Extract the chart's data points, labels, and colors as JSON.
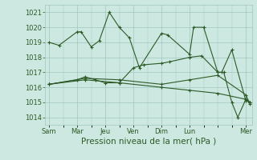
{
  "bg_color": "#cce8e0",
  "grid_color": "#a0c8c0",
  "line_color": "#2d5a27",
  "xlabel": "Pression niveau de la mer( hPa )",
  "xlabel_fontsize": 7.5,
  "yticks": [
    1014,
    1015,
    1016,
    1017,
    1018,
    1019,
    1020,
    1021
  ],
  "xtick_labels": [
    "Sam",
    "Mar",
    "Jeu",
    "Ven",
    "Dim",
    "Lun",
    "Mer"
  ],
  "xtick_positions": [
    0,
    14,
    28,
    42,
    56,
    70,
    98
  ],
  "ylim": [
    1013.5,
    1021.5
  ],
  "xlim": [
    -2,
    101
  ],
  "series": [
    {
      "x": [
        0,
        5,
        14,
        16,
        21,
        25,
        30,
        35,
        40,
        45,
        56,
        59,
        70,
        72,
        77,
        84,
        86,
        91,
        98,
        100
      ],
      "y": [
        1019.0,
        1018.8,
        1019.7,
        1019.7,
        1018.7,
        1019.1,
        1021.0,
        1020.0,
        1019.3,
        1017.3,
        1019.6,
        1019.5,
        1018.2,
        1020.0,
        1020.0,
        1017.0,
        1017.0,
        1018.5,
        1015.1,
        1015.0
      ]
    },
    {
      "x": [
        0,
        14,
        18,
        23,
        28,
        35,
        42,
        47,
        56,
        60,
        70,
        76,
        84,
        87,
        91,
        94,
        98,
        100
      ],
      "y": [
        1016.2,
        1016.5,
        1016.7,
        1016.5,
        1016.3,
        1016.3,
        1017.3,
        1017.5,
        1017.6,
        1017.7,
        1018.0,
        1018.1,
        1017.0,
        1017.0,
        1015.0,
        1014.0,
        1015.2,
        1015.0
      ]
    },
    {
      "x": [
        0,
        18,
        35,
        56,
        70,
        84,
        98,
        100
      ],
      "y": [
        1016.2,
        1016.5,
        1016.3,
        1016.0,
        1015.8,
        1015.6,
        1015.2,
        1015.0
      ]
    },
    {
      "x": [
        0,
        18,
        35,
        56,
        70,
        84,
        98,
        100
      ],
      "y": [
        1016.2,
        1016.6,
        1016.5,
        1016.2,
        1016.5,
        1016.8,
        1015.5,
        1014.9
      ]
    }
  ]
}
